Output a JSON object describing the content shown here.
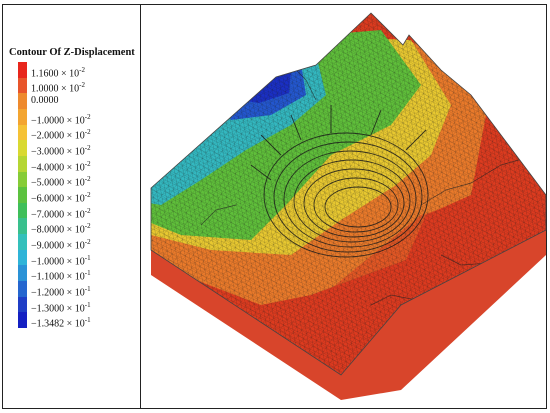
{
  "legend": {
    "title": "Contour Of Z-Displacement",
    "entries": [
      {
        "mantissa": "1.1600",
        "exponent": "-2",
        "color": "#e8261c"
      },
      {
        "mantissa": "1.0000",
        "exponent": "-2",
        "color": "#e8552b"
      },
      {
        "mantissa": "0.0000",
        "exponent": "",
        "color": "#ee8a2e"
      },
      {
        "mantissa": "−1.0000",
        "exponent": "-2",
        "color": "#f3a531"
      },
      {
        "mantissa": "−2.0000",
        "exponent": "-2",
        "color": "#f5c236"
      },
      {
        "mantissa": "−3.0000",
        "exponent": "-2",
        "color": "#d9d932"
      },
      {
        "mantissa": "−4.0000",
        "exponent": "-2",
        "color": "#b5d634"
      },
      {
        "mantissa": "−5.0000",
        "exponent": "-2",
        "color": "#86cc37"
      },
      {
        "mantissa": "−6.0000",
        "exponent": "-2",
        "color": "#5cc23f"
      },
      {
        "mantissa": "−7.0000",
        "exponent": "-2",
        "color": "#3fbf5a"
      },
      {
        "mantissa": "−8.0000",
        "exponent": "-2",
        "color": "#39c08d"
      },
      {
        "mantissa": "−9.0000",
        "exponent": "-2",
        "color": "#34c0bb"
      },
      {
        "mantissa": "−1.0000",
        "exponent": "-1",
        "color": "#2fb4d8"
      },
      {
        "mantissa": "−1.1000",
        "exponent": "-1",
        "color": "#2a92d6"
      },
      {
        "mantissa": "−1.2000",
        "exponent": "-1",
        "color": "#2566cf"
      },
      {
        "mantissa": "−1.3000",
        "exponent": "-1",
        "color": "#1f3ec6"
      },
      {
        "mantissa": "−1.3482",
        "exponent": "-1",
        "color": "#1420c2"
      }
    ]
  },
  "model": {
    "colors": {
      "red": "#dd3b1f",
      "orange": "#ea7a2a",
      "yellow": "#e8c830",
      "green": "#5fbf3a",
      "cyan": "#33b8c0",
      "blue": "#2357cf",
      "deep_blue": "#1a2fc4",
      "side_face": "#d8452b",
      "mesh": "#1a1a1a"
    }
  }
}
